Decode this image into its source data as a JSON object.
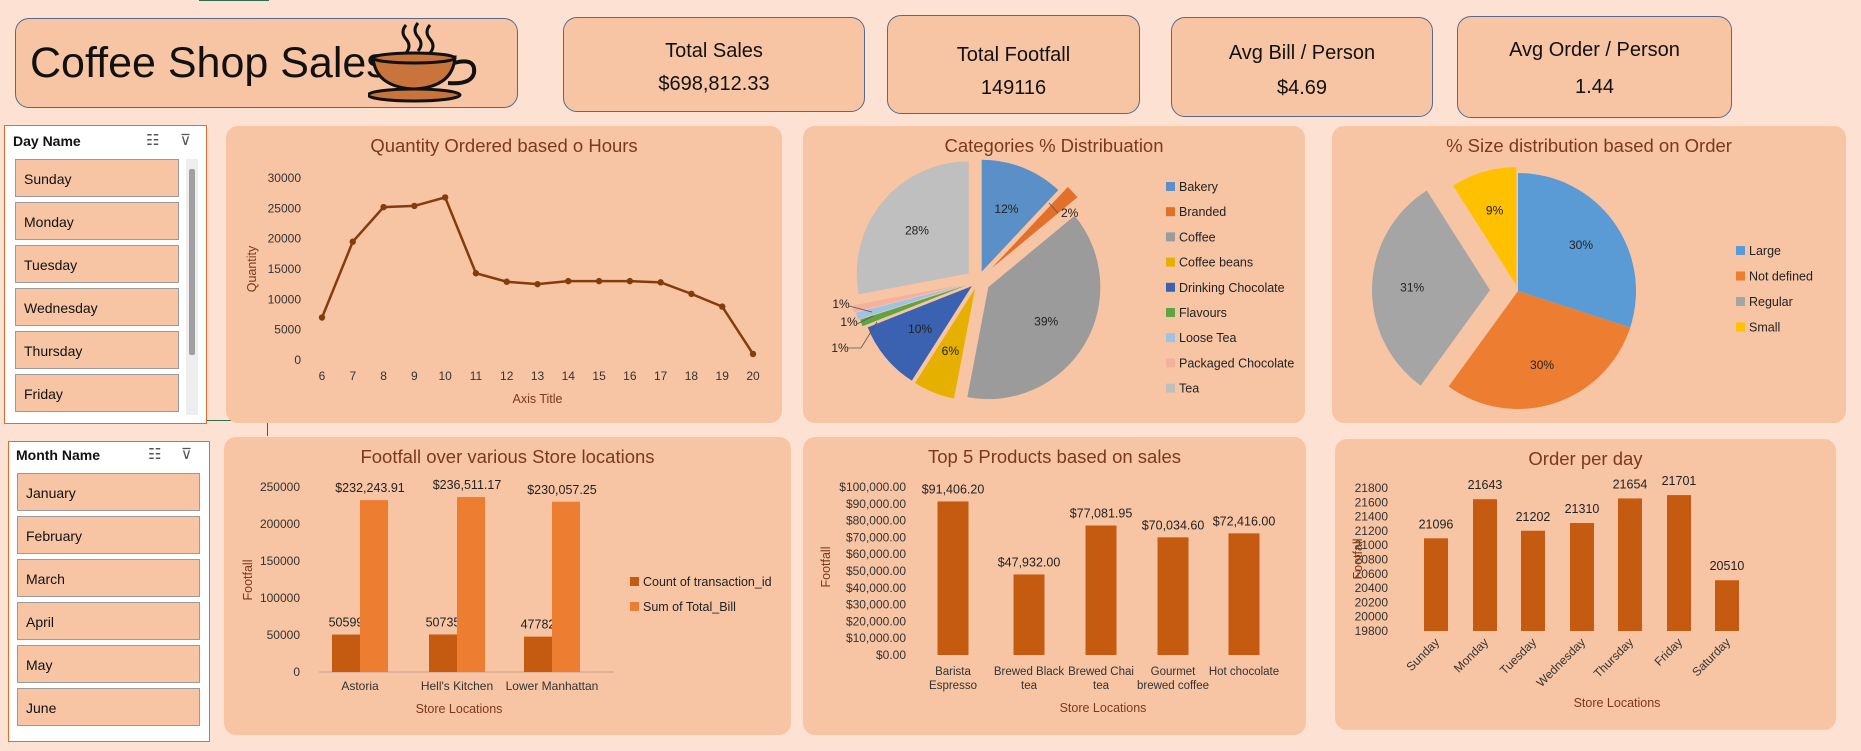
{
  "header": {
    "title": "Coffee Shop Sales",
    "logo_icon": "coffee-cup-icon"
  },
  "kpis": [
    {
      "label": "Total Sales",
      "value": "$698,812.33"
    },
    {
      "label": "Total Footfall",
      "value": "149116"
    },
    {
      "label": "Avg Bill / Person",
      "value": "$4.69"
    },
    {
      "label": "Avg Order / Person",
      "value": "1.44"
    }
  ],
  "slicers": {
    "day": {
      "header": "Day Name",
      "items": [
        "Sunday",
        "Monday",
        "Tuesday",
        "Wednesday",
        "Thursday",
        "Friday"
      ]
    },
    "month": {
      "header": "Month Name",
      "items": [
        "January",
        "February",
        "March",
        "April",
        "May",
        "June"
      ]
    }
  },
  "colors": {
    "accent": "#c55a11",
    "bar_light": "#ed7d31",
    "panel": "#f8c5a4",
    "background": "#fde1d2",
    "title": "#7a3a1a"
  },
  "chart_data": [
    {
      "id": "hours",
      "type": "line",
      "title": "Quantity Ordered based o Hours",
      "xlabel": "Axis Title",
      "ylabel": "Quantity",
      "x": [
        6,
        7,
        8,
        9,
        10,
        11,
        12,
        13,
        14,
        15,
        16,
        17,
        18,
        19,
        20
      ],
      "values": [
        7000,
        19500,
        25200,
        25400,
        26800,
        14300,
        12900,
        12500,
        13000,
        13000,
        13000,
        12800,
        10900,
        8800,
        1000
      ],
      "ylim": [
        0,
        30000
      ],
      "yticks": [
        "0",
        "5000",
        "10000",
        "15000",
        "20000",
        "25000",
        "30000"
      ],
      "color": "#843c0c"
    },
    {
      "id": "categories",
      "type": "pie",
      "title": "Categories % Distribuation",
      "legend_position": "right",
      "slices": [
        {
          "name": "Bakery",
          "value": 12,
          "label": "12%",
          "color": "#5b8fc7"
        },
        {
          "name": "Branded",
          "value": 2,
          "label": "2%",
          "color": "#e0702a"
        },
        {
          "name": "Coffee",
          "value": 39,
          "label": "39%",
          "color": "#9b9b9b"
        },
        {
          "name": "Coffee beans",
          "value": 6,
          "label": "6%",
          "color": "#e6b000"
        },
        {
          "name": "Drinking Chocolate",
          "value": 10,
          "label": "10%",
          "color": "#3a62b0"
        },
        {
          "name": "Flavours",
          "value": 1,
          "label": "1%",
          "color": "#5fa443"
        },
        {
          "name": "Loose Tea",
          "value": 1,
          "label": "1%",
          "color": "#9dc3e6"
        },
        {
          "name": "Packaged Chocolate",
          "value": 1,
          "label": "1%",
          "color": "#f4b1a0"
        },
        {
          "name": "Tea",
          "value": 28,
          "label": "28%",
          "color": "#bfbfbf"
        }
      ]
    },
    {
      "id": "size",
      "type": "pie",
      "title": "% Size distribution based on Order",
      "legend_position": "right",
      "slices": [
        {
          "name": "Large",
          "value": 30,
          "label": "30%",
          "color": "#5b9bd5"
        },
        {
          "name": "Not defined",
          "value": 30,
          "label": "30%",
          "color": "#ed7d31"
        },
        {
          "name": "Regular",
          "value": 31,
          "label": "31%",
          "color": "#a5a5a5"
        },
        {
          "name": "Small",
          "value": 9,
          "label": "9%",
          "color": "#ffc000"
        }
      ]
    },
    {
      "id": "footfall",
      "type": "bar",
      "title": "Footfall over various Store locations",
      "xlabel": "Store Locations",
      "ylabel": "Footfall",
      "categories": [
        "Astoria",
        "Hell's Kitchen",
        "Lower Manhattan"
      ],
      "ylim": [
        0,
        250000
      ],
      "yticks": [
        "0",
        "50000",
        "100000",
        "150000",
        "200000",
        "250000"
      ],
      "legend_position": "right",
      "series": [
        {
          "name": "Count of transaction_id",
          "values": [
            50599,
            50735,
            47782
          ],
          "labels": [
            "50599",
            "50735",
            "47782"
          ],
          "color": "#c55a11"
        },
        {
          "name": "Sum of Total_Bill",
          "values": [
            232243.91,
            236511.17,
            230057.25
          ],
          "labels": [
            "$232,243.91",
            "$236,511.17",
            "$230,057.25"
          ],
          "color": "#ed7d31"
        }
      ]
    },
    {
      "id": "products",
      "type": "bar",
      "title": "Top 5 Products based on sales",
      "xlabel": "Store Locations",
      "ylabel": "Footfall",
      "categories": [
        [
          "Barista",
          "Espresso"
        ],
        [
          "Brewed Black",
          "tea"
        ],
        [
          "Brewed Chai",
          "tea"
        ],
        [
          "Gourmet",
          "brewed coffee"
        ],
        [
          "Hot chocolate"
        ]
      ],
      "values": [
        91406.2,
        47932.0,
        77081.95,
        70034.6,
        72416.0
      ],
      "labels": [
        "$91,406.20",
        "$47,932.00",
        "$77,081.95",
        "$70,034.60",
        "$72,416.00"
      ],
      "ylim": [
        0,
        100000
      ],
      "yticks": [
        "$0.00",
        "$10,000.00",
        "$20,000.00",
        "$30,000.00",
        "$40,000.00",
        "$50,000.00",
        "$60,000.00",
        "$70,000.00",
        "$80,000.00",
        "$90,000.00",
        "$100,000.00"
      ],
      "color": "#c55a11"
    },
    {
      "id": "orders",
      "type": "bar",
      "title": "Order per day",
      "xlabel": "Store Locations",
      "ylabel": "Footfall",
      "categories": [
        "Sunday",
        "Monday",
        "Tuesday",
        "Wednesday",
        "Thursday",
        "Friday",
        "Saturday"
      ],
      "values": [
        21096,
        21643,
        21202,
        21310,
        21654,
        21701,
        20510
      ],
      "labels": [
        "21096",
        "21643",
        "21202",
        "21310",
        "21654",
        "21701",
        "20510"
      ],
      "ylim": [
        19800,
        21800
      ],
      "yticks": [
        "19800",
        "20000",
        "20200",
        "20400",
        "20600",
        "20800",
        "21000",
        "21200",
        "21400",
        "21600",
        "21800"
      ],
      "color": "#c55a11"
    }
  ]
}
